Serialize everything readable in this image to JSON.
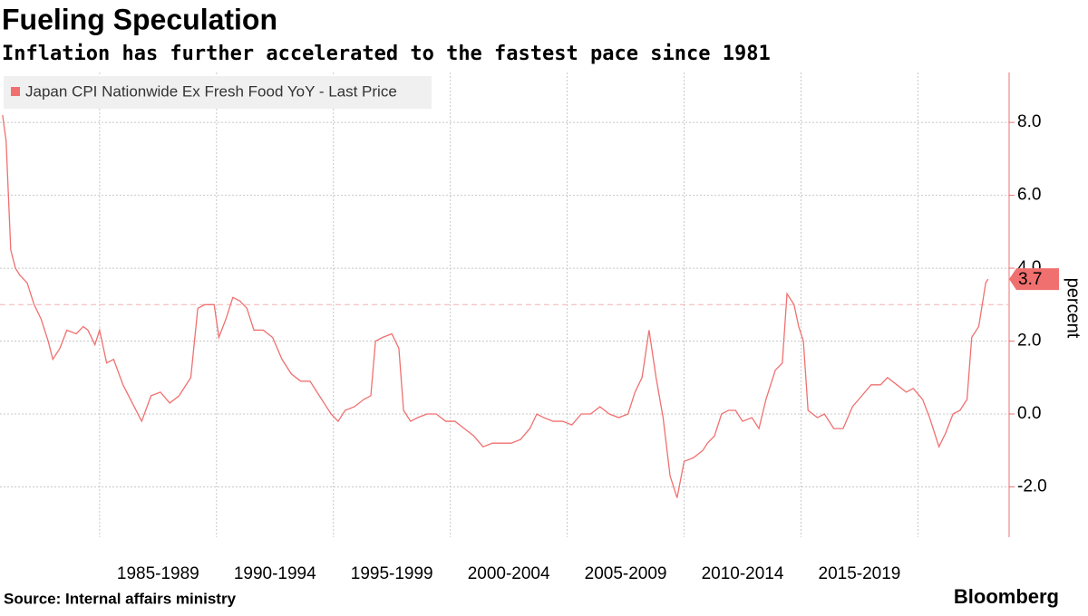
{
  "chart_data": {
    "type": "line",
    "title": "Fueling Speculation",
    "subtitle": "Inflation has further accelerated to the fastest pace since 1981",
    "y_label": "percent",
    "source": "Source: Internal affairs ministry",
    "brand": "Bloomberg",
    "xlim": [
      1980.74,
      2023.9
    ],
    "xticks": [
      1985,
      1990,
      1995,
      2000,
      2005,
      2010,
      2015,
      2020
    ],
    "xtick_labels": [
      "1985-1989",
      "1990-1994",
      "1995-1999",
      "2000-2004",
      "2005-2009",
      "2010-2014",
      "2015-2019",
      null
    ],
    "ylim": [
      -3.38,
      9.37
    ],
    "yticks": [
      {
        "value": 8,
        "label": "8.0"
      },
      {
        "value": 6,
        "label": "6.0"
      },
      {
        "value": 4,
        "label": "4.0"
      },
      {
        "value": 2,
        "label": "2.0"
      },
      {
        "value": 0,
        "label": "0.0"
      },
      {
        "value": -2,
        "label": "-2.0"
      }
    ],
    "grid": true,
    "reference_line": 3,
    "last_value_label": "3.7",
    "series": [
      {
        "name": "Japan CPI Nationwide Ex Fresh Food YoY - Last Price",
        "color": "#f07070",
        "x": [
          1980.85,
          1981.0,
          1981.2,
          1981.4,
          1981.6,
          1981.9,
          1982.2,
          1982.5,
          1982.8,
          1983.0,
          1983.3,
          1983.6,
          1984.0,
          1984.3,
          1984.5,
          1984.8,
          1985.0,
          1985.3,
          1985.6,
          1986.0,
          1986.4,
          1986.8,
          1987.2,
          1987.6,
          1988.0,
          1988.4,
          1988.9,
          1989.2,
          1989.5,
          1989.9,
          1990.1,
          1990.4,
          1990.7,
          1991.0,
          1991.3,
          1991.6,
          1992.0,
          1992.4,
          1992.8,
          1993.2,
          1993.6,
          1994.0,
          1994.3,
          1994.6,
          1994.9,
          1995.2,
          1995.5,
          1995.9,
          1996.3,
          1996.6,
          1996.8,
          1997.1,
          1997.5,
          1997.8,
          1998.0,
          1998.3,
          1998.6,
          1999.0,
          1999.4,
          1999.8,
          2000.2,
          2000.6,
          2001.0,
          2001.4,
          2001.8,
          2002.2,
          2002.6,
          2003.0,
          2003.4,
          2003.7,
          2004.0,
          2004.4,
          2004.8,
          2005.2,
          2005.6,
          2006.0,
          2006.4,
          2006.8,
          2007.2,
          2007.6,
          2007.9,
          2008.2,
          2008.5,
          2008.8,
          2009.1,
          2009.4,
          2009.7,
          2010.0,
          2010.4,
          2010.8,
          2011.0,
          2011.3,
          2011.6,
          2011.9,
          2012.2,
          2012.5,
          2012.9,
          2013.2,
          2013.5,
          2013.9,
          2014.2,
          2014.4,
          2014.7,
          2014.9,
          2015.1,
          2015.3,
          2015.7,
          2016.0,
          2016.4,
          2016.8,
          2017.2,
          2017.6,
          2018.0,
          2018.4,
          2018.7,
          2019.1,
          2019.5,
          2019.8,
          2020.2,
          2020.5,
          2020.9,
          2021.2,
          2021.5,
          2021.8,
          2022.1,
          2022.3,
          2022.6,
          2022.9,
          2023.0
        ],
        "values": [
          8.2,
          7.5,
          4.5,
          4.0,
          3.8,
          3.6,
          3.0,
          2.6,
          2.0,
          1.5,
          1.8,
          2.3,
          2.2,
          2.4,
          2.3,
          1.9,
          2.3,
          1.4,
          1.5,
          0.8,
          0.3,
          -0.2,
          0.5,
          0.6,
          0.3,
          0.5,
          1.0,
          2.9,
          3.0,
          3.0,
          2.1,
          2.6,
          3.2,
          3.1,
          2.9,
          2.3,
          2.3,
          2.1,
          1.5,
          1.1,
          0.9,
          0.9,
          0.6,
          0.3,
          0.0,
          -0.2,
          0.1,
          0.2,
          0.4,
          0.5,
          2.0,
          2.1,
          2.2,
          1.8,
          0.1,
          -0.2,
          -0.1,
          0.0,
          0.0,
          -0.2,
          -0.2,
          -0.4,
          -0.6,
          -0.9,
          -0.8,
          -0.8,
          -0.8,
          -0.7,
          -0.4,
          0.0,
          -0.1,
          -0.2,
          -0.2,
          -0.3,
          0.0,
          0.0,
          0.2,
          0.0,
          -0.1,
          0.0,
          0.6,
          1.0,
          2.3,
          1.0,
          -0.1,
          -1.7,
          -2.3,
          -1.3,
          -1.2,
          -1.0,
          -0.8,
          -0.6,
          0.0,
          0.1,
          0.1,
          -0.2,
          -0.1,
          -0.4,
          0.4,
          1.2,
          1.4,
          3.3,
          3.0,
          2.4,
          2.0,
          0.1,
          -0.1,
          0.0,
          -0.4,
          -0.4,
          0.2,
          0.5,
          0.8,
          0.8,
          1.0,
          0.8,
          0.6,
          0.7,
          0.4,
          -0.1,
          -0.9,
          -0.5,
          0.0,
          0.1,
          0.4,
          2.1,
          2.4,
          3.6,
          3.7
        ]
      }
    ]
  }
}
